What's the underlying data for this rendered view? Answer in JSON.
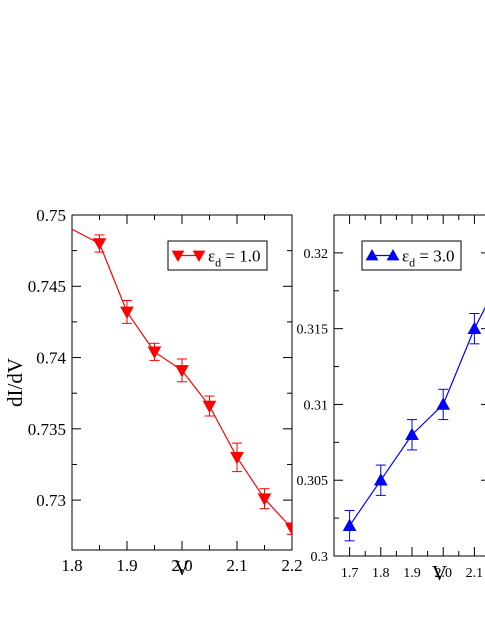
{
  "chart_data": [
    {
      "type": "line",
      "xlabel": "V",
      "ylabel": "dI/dV",
      "xlim": [
        1.8,
        2.2
      ],
      "ylim": [
        0.7265,
        0.75
      ],
      "x_ticks": [
        1.8,
        1.9,
        2.0,
        2.1,
        2.2
      ],
      "x_tick_labels": [
        "1.8",
        "1.9",
        "2.0",
        "2.1",
        "2.2"
      ],
      "y_ticks": [
        0.73,
        0.735,
        0.74,
        0.745,
        0.75
      ],
      "y_tick_labels": [
        "0.73",
        "0.735",
        "0.74",
        "0.745",
        "0.75"
      ],
      "legend_position": "top-right",
      "legend_prefix": "ε",
      "legend_sub": "d",
      "legend_suffix": " = 1.0",
      "series": [
        {
          "color": "#ff0000",
          "marker": "triangle-down",
          "line_x": [
            1.8,
            1.85,
            1.9,
            1.95,
            2.0,
            2.05,
            2.1,
            2.15,
            2.2
          ],
          "line_y": [
            0.749,
            0.748,
            0.7432,
            0.7404,
            0.7391,
            0.7366,
            0.733,
            0.7301,
            0.728
          ],
          "x": [
            1.85,
            1.9,
            1.95,
            2.0,
            2.05,
            2.1,
            2.15,
            2.2
          ],
          "y": [
            0.748,
            0.7432,
            0.7404,
            0.7391,
            0.7366,
            0.733,
            0.7301,
            0.728
          ],
          "err": [
            0.0006,
            0.0008,
            0.0006,
            0.0008,
            0.0007,
            0.001,
            0.0007,
            0.0004
          ]
        }
      ]
    },
    {
      "type": "line",
      "xlabel": "V",
      "ylabel": "",
      "xlim": [
        1.65,
        2.15
      ],
      "ylim": [
        0.3,
        0.3225
      ],
      "x_ticks": [
        1.7,
        1.8,
        1.9,
        2.0,
        2.1
      ],
      "x_tick_labels": [
        "1.7",
        "1.8",
        "1.9",
        "2.0",
        "2.1"
      ],
      "y_ticks": [
        0.3,
        0.305,
        0.31,
        0.315,
        0.32
      ],
      "y_tick_labels": [
        "0.3",
        "0.305",
        "0.31",
        "0.315",
        "0.32"
      ],
      "legend_position": "top-right",
      "legend_prefix": "ε",
      "legend_sub": "d",
      "legend_suffix": " = 3.0",
      "series": [
        {
          "color": "#0000ff",
          "marker": "triangle-up",
          "line_x": [
            1.7,
            1.8,
            1.9,
            2.0,
            2.1,
            2.15
          ],
          "line_y": [
            0.302,
            0.305,
            0.308,
            0.31,
            0.315,
            0.317
          ],
          "x": [
            1.7,
            1.8,
            1.9,
            2.0,
            2.1
          ],
          "y": [
            0.302,
            0.305,
            0.308,
            0.31,
            0.315
          ],
          "err": [
            0.001,
            0.001,
            0.001,
            0.001,
            0.001
          ]
        }
      ]
    }
  ]
}
